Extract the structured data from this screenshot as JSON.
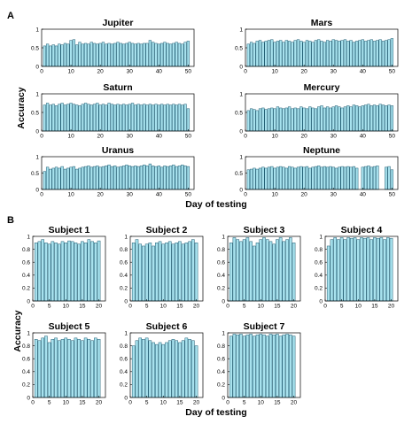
{
  "panel_labels": {
    "a": "A",
    "b": "B"
  },
  "axis_labels": {
    "a_ylabel": "Accuracy",
    "a_xlabel": "Day of testing",
    "b_ylabel": "Accuracy",
    "b_xlabel": "Day of testing"
  },
  "colors": {
    "bar_fill": "#a8e2ee",
    "bar_stroke": "#1f5c72",
    "axis": "#000000"
  },
  "chart_data": [
    {
      "type": "bar",
      "title": "Jupiter",
      "xlim": [
        0,
        52
      ],
      "ylim": [
        0,
        1
      ],
      "xticks": [
        0,
        10,
        20,
        30,
        40,
        50
      ],
      "yticks": [
        0,
        0.5,
        1
      ],
      "x_start": 1,
      "values": [
        0.55,
        0.6,
        0.55,
        0.58,
        0.55,
        0.6,
        0.58,
        0.62,
        0.6,
        0.7,
        0.72,
        0.58,
        0.65,
        0.6,
        0.62,
        0.6,
        0.65,
        0.62,
        0.6,
        0.62,
        0.65,
        0.6,
        0.62,
        0.6,
        0.62,
        0.65,
        0.62,
        0.6,
        0.62,
        0.65,
        0.62,
        0.6,
        0.62,
        0.6,
        0.62,
        0.62,
        0.7,
        0.65,
        0.62,
        0.6,
        0.62,
        0.65,
        0.62,
        0.6,
        0.62,
        0.65,
        0.62,
        0.6,
        0.65,
        0.68
      ]
    },
    {
      "type": "bar",
      "title": "Mars",
      "xlim": [
        0,
        52
      ],
      "ylim": [
        0,
        1
      ],
      "xticks": [
        0,
        10,
        20,
        30,
        40,
        50
      ],
      "yticks": [
        0,
        0.5,
        1
      ],
      "x_start": 1,
      "values": [
        0.6,
        0.65,
        0.62,
        0.68,
        0.7,
        0.65,
        0.68,
        0.7,
        0.72,
        0.65,
        0.68,
        0.7,
        0.65,
        0.7,
        0.68,
        0.65,
        0.7,
        0.72,
        0.68,
        0.65,
        0.7,
        0.68,
        0.65,
        0.7,
        0.72,
        0.68,
        0.65,
        0.7,
        0.68,
        0.72,
        0.7,
        0.68,
        0.7,
        0.72,
        0.68,
        0.7,
        0.65,
        0.68,
        0.7,
        0.72,
        0.68,
        0.7,
        0.72,
        0.68,
        0.7,
        0.72,
        0.68,
        0.7,
        0.72,
        0.75
      ]
    },
    {
      "type": "bar",
      "title": "Saturn",
      "xlim": [
        0,
        52
      ],
      "ylim": [
        0,
        1
      ],
      "xticks": [
        0,
        10,
        20,
        30,
        40,
        50
      ],
      "yticks": [
        0,
        0.5,
        1
      ],
      "x_start": 1,
      "values": [
        0.7,
        0.75,
        0.7,
        0.72,
        0.68,
        0.72,
        0.75,
        0.7,
        0.72,
        0.75,
        0.72,
        0.7,
        0.68,
        0.72,
        0.75,
        0.72,
        0.7,
        0.72,
        0.75,
        0.7,
        0.72,
        0.7,
        0.75,
        0.72,
        0.7,
        0.72,
        0.7,
        0.72,
        0.7,
        0.72,
        0.75,
        0.7,
        0.72,
        0.7,
        0.72,
        0.7,
        0.72,
        0.7,
        0.72,
        0.7,
        0.72,
        0.7,
        0.72,
        0.7,
        0.72,
        0.7,
        0.72,
        0.7,
        0.72,
        0.6
      ]
    },
    {
      "type": "bar",
      "title": "Mercury",
      "xlim": [
        0,
        52
      ],
      "ylim": [
        0,
        1
      ],
      "xticks": [
        0,
        10,
        20,
        30,
        40,
        50
      ],
      "yticks": [
        0,
        0.5,
        1
      ],
      "x_start": 1,
      "values": [
        0.55,
        0.6,
        0.58,
        0.55,
        0.6,
        0.62,
        0.58,
        0.6,
        0.62,
        0.6,
        0.65,
        0.62,
        0.6,
        0.62,
        0.65,
        0.6,
        0.62,
        0.6,
        0.65,
        0.62,
        0.6,
        0.65,
        0.62,
        0.6,
        0.65,
        0.68,
        0.62,
        0.65,
        0.62,
        0.65,
        0.68,
        0.65,
        0.62,
        0.65,
        0.68,
        0.65,
        0.7,
        0.68,
        0.65,
        0.68,
        0.7,
        0.72,
        0.68,
        0.7,
        0.68,
        0.72,
        0.7,
        0.68,
        0.7,
        0.68
      ]
    },
    {
      "type": "bar",
      "title": "Uranus",
      "xlim": [
        0,
        52
      ],
      "ylim": [
        0,
        1
      ],
      "xticks": [
        0,
        10,
        20,
        30,
        40,
        50
      ],
      "yticks": [
        0,
        0.5,
        1
      ],
      "x_start": 1,
      "values": [
        0.55,
        0.68,
        0.62,
        0.65,
        0.68,
        0.65,
        0.7,
        0.62,
        0.65,
        0.68,
        0.7,
        0.62,
        0.65,
        0.68,
        0.7,
        0.72,
        0.68,
        0.7,
        0.72,
        0.68,
        0.7,
        0.72,
        0.75,
        0.7,
        0.72,
        0.68,
        0.7,
        0.72,
        0.75,
        0.72,
        0.7,
        0.72,
        0.7,
        0.72,
        0.75,
        0.72,
        0.78,
        0.72,
        0.7,
        0.72,
        0.68,
        0.72,
        0.7,
        0.72,
        0.75,
        0.7,
        0.72,
        0.75,
        0.72,
        0.7
      ]
    },
    {
      "type": "bar",
      "title": "Neptune",
      "xlim": [
        0,
        52
      ],
      "ylim": [
        0,
        1
      ],
      "xticks": [
        0,
        10,
        20,
        30,
        40,
        50
      ],
      "yticks": [
        0,
        0.5,
        1
      ],
      "x_start": 1,
      "values": [
        0.6,
        0.62,
        0.65,
        0.62,
        0.65,
        0.68,
        0.65,
        0.68,
        0.7,
        0.65,
        0.68,
        0.7,
        0.68,
        0.65,
        0.7,
        0.68,
        0.65,
        0.68,
        0.7,
        0.68,
        0.7,
        0.65,
        0.68,
        0.7,
        0.72,
        0.68,
        0.7,
        0.68,
        0.7,
        0.68,
        0.65,
        0.68,
        0.7,
        0.68,
        0.7,
        0.68,
        0.7,
        0.65,
        null,
        0.68,
        0.7,
        0.72,
        0.68,
        0.7,
        0.72,
        null,
        null,
        0.68,
        0.7,
        0.6
      ]
    },
    {
      "type": "bar",
      "title": "Subject 1",
      "xlim": [
        0,
        22
      ],
      "ylim": [
        0,
        1
      ],
      "xticks": [
        0,
        5,
        10,
        15,
        20
      ],
      "yticks": [
        0,
        0.2,
        0.4,
        0.6,
        0.8,
        1
      ],
      "x_start": 1,
      "values": [
        0.9,
        0.92,
        0.95,
        0.9,
        0.88,
        0.92,
        0.9,
        0.88,
        0.92,
        0.9,
        0.93,
        0.92,
        0.9,
        0.88,
        0.92,
        0.9,
        0.95,
        0.92,
        0.9,
        0.93
      ]
    },
    {
      "type": "bar",
      "title": "Subject 2",
      "xlim": [
        0,
        22
      ],
      "ylim": [
        0,
        1
      ],
      "xticks": [
        0,
        5,
        10,
        15,
        20
      ],
      "yticks": [
        0,
        0.2,
        0.4,
        0.6,
        0.8,
        1
      ],
      "x_start": 1,
      "values": [
        0.9,
        0.95,
        0.88,
        0.85,
        0.88,
        0.9,
        0.85,
        0.9,
        0.92,
        0.88,
        0.9,
        0.92,
        0.88,
        0.9,
        0.92,
        0.88,
        0.9,
        0.92,
        0.95,
        0.9
      ]
    },
    {
      "type": "bar",
      "title": "Subject 3",
      "xlim": [
        0,
        22
      ],
      "ylim": [
        0,
        1
      ],
      "xticks": [
        0,
        5,
        10,
        15,
        20
      ],
      "yticks": [
        0,
        0.2,
        0.4,
        0.6,
        0.8,
        1
      ],
      "x_start": 1,
      "values": [
        0.9,
        0.98,
        0.95,
        0.92,
        0.95,
        0.98,
        0.92,
        0.85,
        0.9,
        0.95,
        0.98,
        0.95,
        0.92,
        0.88,
        0.95,
        0.98,
        0.92,
        0.95,
        0.98,
        0.9
      ]
    },
    {
      "type": "bar",
      "title": "Subject 4",
      "xlim": [
        0,
        22
      ],
      "ylim": [
        0,
        1
      ],
      "xticks": [
        0,
        5,
        10,
        15,
        20
      ],
      "yticks": [
        0,
        0.2,
        0.4,
        0.6,
        0.8,
        1
      ],
      "x_start": 1,
      "values": [
        0.85,
        0.95,
        0.98,
        0.95,
        0.98,
        0.95,
        0.98,
        0.97,
        0.98,
        0.95,
        0.98,
        0.97,
        0.98,
        0.95,
        0.98,
        0.97,
        0.98,
        0.95,
        0.98,
        0.97
      ]
    },
    {
      "type": "bar",
      "title": "Subject 5",
      "xlim": [
        0,
        22
      ],
      "ylim": [
        0,
        1
      ],
      "xticks": [
        0,
        5,
        10,
        15,
        20
      ],
      "yticks": [
        0,
        0.2,
        0.4,
        0.6,
        0.8,
        1
      ],
      "x_start": 1,
      "values": [
        0.9,
        0.88,
        0.92,
        0.95,
        0.85,
        0.9,
        0.92,
        0.88,
        0.9,
        0.92,
        0.9,
        0.88,
        0.92,
        0.9,
        0.88,
        0.92,
        0.9,
        0.88,
        0.92,
        0.9
      ]
    },
    {
      "type": "bar",
      "title": "Subject 6",
      "xlim": [
        0,
        22
      ],
      "ylim": [
        0,
        1
      ],
      "xticks": [
        0,
        5,
        10,
        15,
        20
      ],
      "yticks": [
        0,
        0.2,
        0.4,
        0.6,
        0.8,
        1
      ],
      "x_start": 1,
      "values": [
        0.8,
        0.88,
        0.92,
        0.9,
        0.92,
        0.88,
        0.85,
        0.82,
        0.85,
        0.82,
        0.85,
        0.88,
        0.9,
        0.88,
        0.85,
        0.88,
        0.92,
        0.9,
        0.88,
        0.8
      ]
    },
    {
      "type": "bar",
      "title": "Subject 7",
      "xlim": [
        0,
        22
      ],
      "ylim": [
        0,
        1
      ],
      "xticks": [
        0,
        5,
        10,
        15,
        20
      ],
      "yticks": [
        0,
        0.2,
        0.4,
        0.6,
        0.8,
        1
      ],
      "x_start": 1,
      "values": [
        0.95,
        0.98,
        0.97,
        0.98,
        0.95,
        0.97,
        0.98,
        0.95,
        0.97,
        0.98,
        0.97,
        0.95,
        0.98,
        0.97,
        0.98,
        0.95,
        0.97,
        0.98,
        0.97,
        0.95
      ]
    }
  ]
}
